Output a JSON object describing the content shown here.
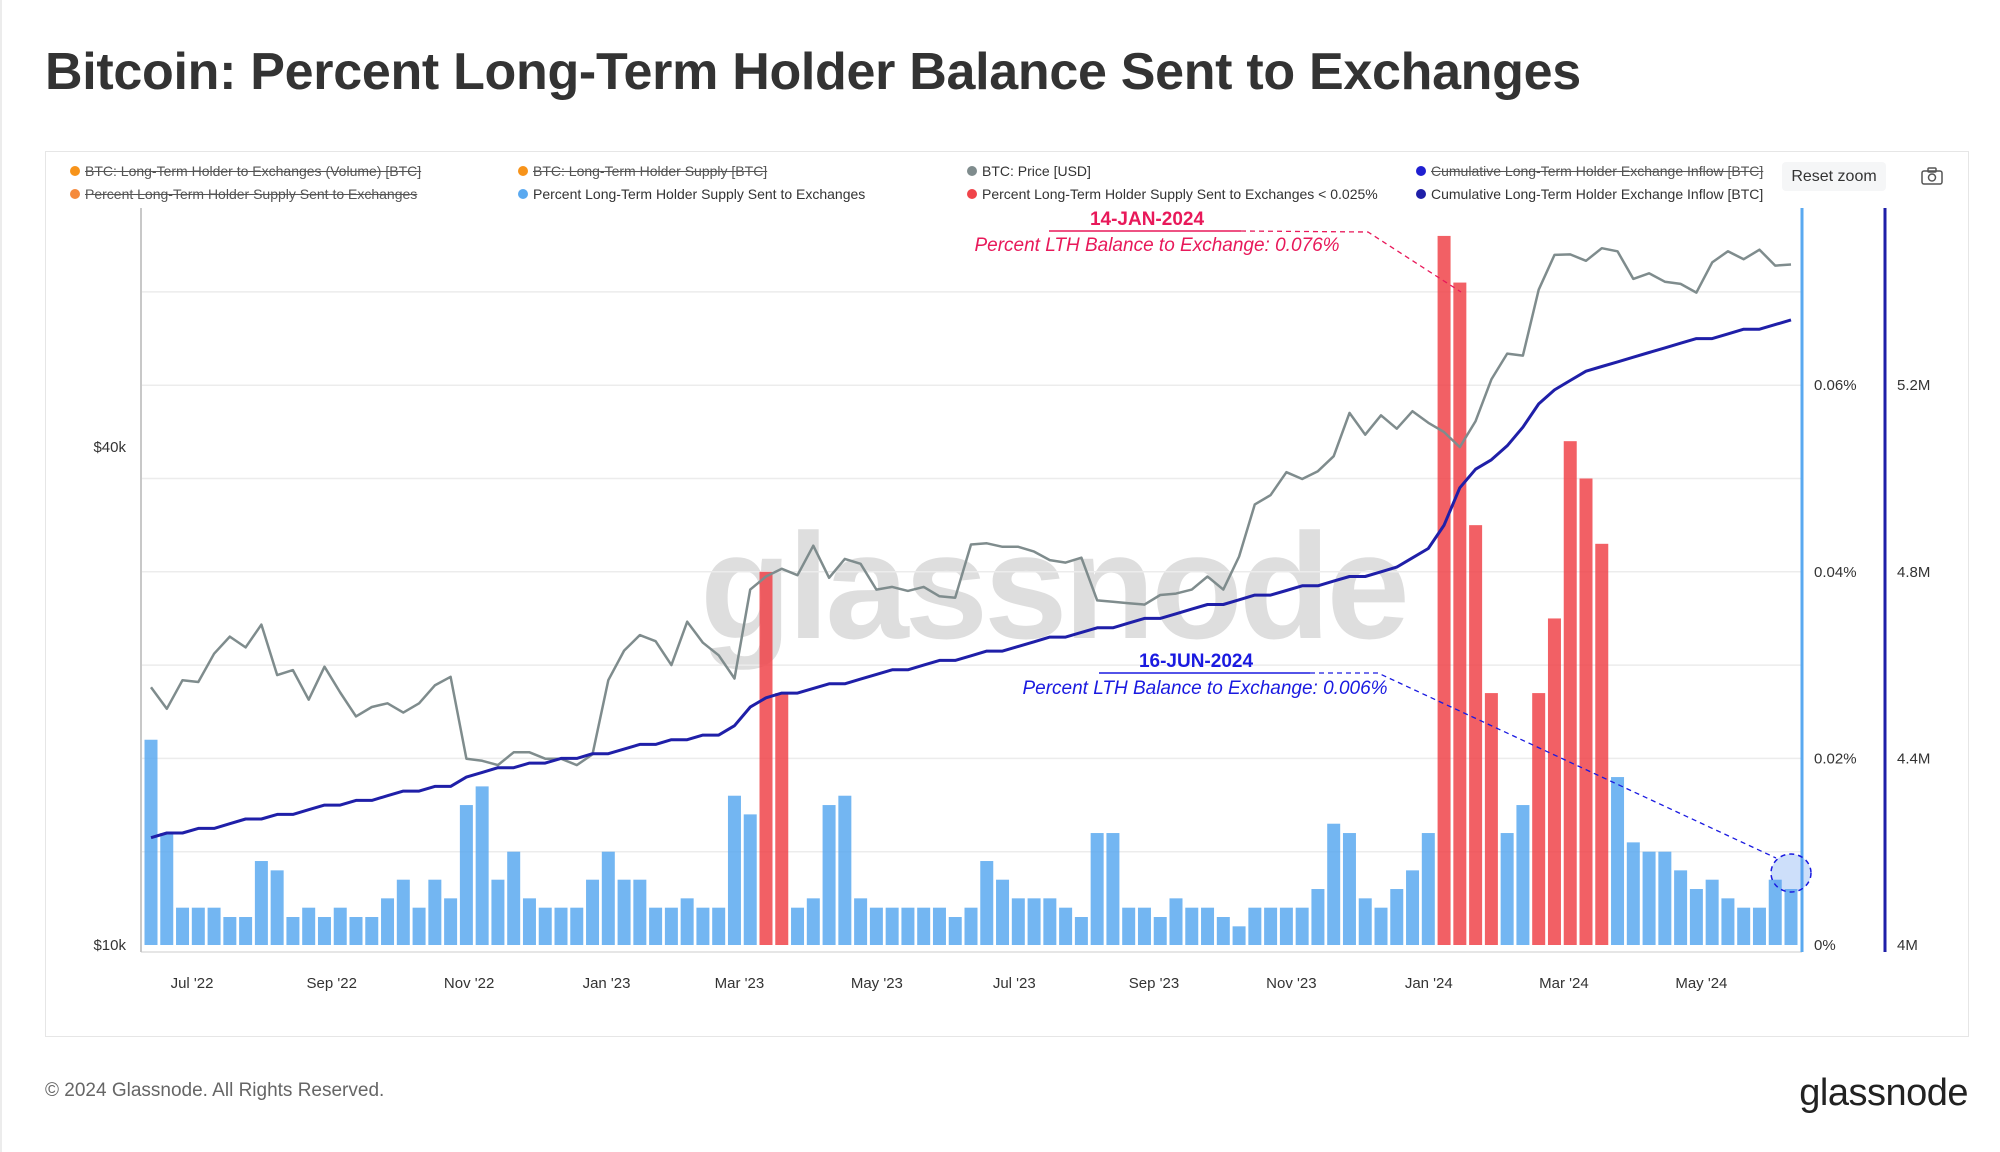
{
  "title": "Bitcoin: Percent Long-Term Holder Balance Sent to Exchanges",
  "legend": [
    {
      "label": "BTC: Long-Term Holder to Exchanges (Volume) [BTC]",
      "color": "#f7931a",
      "enabled": false
    },
    {
      "label": "BTC: Long-Term Holder Supply [BTC]",
      "color": "#f7931a",
      "enabled": false
    },
    {
      "label": "BTC: Price [USD]",
      "color": "#7f8c8d",
      "enabled": true
    },
    {
      "label": "Cumulative Long-Term Holder Exchange Inflow [BTC]",
      "color": "#1f1fd1",
      "enabled": false
    },
    {
      "label": "Percent Long-Term Holder Supply Sent to Exchanges",
      "color": "#f58a3c",
      "enabled": false
    },
    {
      "label": "Percent Long-Term Holder Supply Sent to Exchanges",
      "color": "#5aa9f0",
      "enabled": true
    },
    {
      "label": "Percent Long-Term Holder Supply Sent to Exchanges < 0.025%",
      "color": "#f0444a",
      "enabled": true
    },
    {
      "label": "Cumulative Long-Term Holder Exchange Inflow [BTC]",
      "color": "#1f1fa8",
      "enabled": true
    }
  ],
  "controls": {
    "reset_zoom": "Reset zoom",
    "camera_icon": "camera-icon"
  },
  "watermark": "glassnode",
  "annotations": [
    {
      "date": "14-JAN-2024",
      "text": "Percent LTH Balance to Exchange: 0.076%",
      "color": "#e8195a"
    },
    {
      "date": "16-JUN-2024",
      "text": "Percent LTH Balance to Exchange: 0.006%",
      "color": "#1a1ae0"
    }
  ],
  "footer": {
    "copyright": "© 2024 Glassnode. All Rights Reserved.",
    "logo": "glassnode"
  },
  "chart_data": {
    "type": "bar+line",
    "x_tick_labels": [
      "Jul '22",
      "Sep '22",
      "Nov '22",
      "Jan '23",
      "Mar '23",
      "May '23",
      "Jul '23",
      "Sep '23",
      "Nov '23",
      "Jan '24",
      "Mar '24",
      "May '24"
    ],
    "left_axis": {
      "scale": "log",
      "tick_labels": [
        "$10k",
        "$40k"
      ],
      "ticks": [
        10000,
        40000
      ]
    },
    "right_axis_percent": {
      "tick_labels": [
        "0%",
        "0.02%",
        "0.04%",
        "0.06%"
      ],
      "ticks": [
        0,
        0.02,
        0.04,
        0.06
      ],
      "color": "#5aa9f0"
    },
    "right_axis_cumulative": {
      "tick_labels": [
        "4M",
        "4.4M",
        "4.8M",
        "5.2M"
      ],
      "ticks": [
        4.0,
        4.4,
        4.8,
        5.2
      ],
      "color": "#1f1fa8"
    },
    "grid": true,
    "legend_position": "top",
    "threshold_percent": 0.025,
    "x": [
      "2022-06-19",
      "2022-06-26",
      "2022-07-03",
      "2022-07-10",
      "2022-07-17",
      "2022-07-24",
      "2022-07-31",
      "2022-08-07",
      "2022-08-14",
      "2022-08-21",
      "2022-08-28",
      "2022-09-04",
      "2022-09-11",
      "2022-09-18",
      "2022-09-25",
      "2022-10-02",
      "2022-10-09",
      "2022-10-16",
      "2022-10-23",
      "2022-10-30",
      "2022-11-06",
      "2022-11-13",
      "2022-11-20",
      "2022-11-27",
      "2022-12-04",
      "2022-12-11",
      "2022-12-18",
      "2022-12-25",
      "2023-01-01",
      "2023-01-08",
      "2023-01-15",
      "2023-01-22",
      "2023-01-29",
      "2023-02-05",
      "2023-02-12",
      "2023-02-19",
      "2023-02-26",
      "2023-03-05",
      "2023-03-12",
      "2023-03-19",
      "2023-03-26",
      "2023-04-02",
      "2023-04-09",
      "2023-04-16",
      "2023-04-23",
      "2023-04-30",
      "2023-05-07",
      "2023-05-14",
      "2023-05-21",
      "2023-05-28",
      "2023-06-04",
      "2023-06-11",
      "2023-06-18",
      "2023-06-25",
      "2023-07-02",
      "2023-07-09",
      "2023-07-16",
      "2023-07-23",
      "2023-07-30",
      "2023-08-06",
      "2023-08-13",
      "2023-08-20",
      "2023-08-27",
      "2023-09-03",
      "2023-09-10",
      "2023-09-17",
      "2023-09-24",
      "2023-10-01",
      "2023-10-08",
      "2023-10-15",
      "2023-10-22",
      "2023-10-29",
      "2023-11-05",
      "2023-11-12",
      "2023-11-19",
      "2023-11-26",
      "2023-12-03",
      "2023-12-10",
      "2023-12-17",
      "2023-12-24",
      "2023-12-31",
      "2024-01-07",
      "2024-01-14",
      "2024-01-21",
      "2024-01-28",
      "2024-02-04",
      "2024-02-11",
      "2024-02-18",
      "2024-02-25",
      "2024-03-03",
      "2024-03-10",
      "2024-03-17",
      "2024-03-24",
      "2024-03-31",
      "2024-04-07",
      "2024-04-14",
      "2024-04-21",
      "2024-04-28",
      "2024-05-05",
      "2024-05-12",
      "2024-05-19",
      "2024-05-26",
      "2024-06-02",
      "2024-06-09",
      "2024-06-16"
    ],
    "series": [
      {
        "name": "BTC: Price [USD]",
        "type": "line",
        "axis": "left",
        "color": "#7f8c8d",
        "values": [
          20500,
          19300,
          20900,
          20800,
          22500,
          23600,
          22900,
          24400,
          21200,
          21500,
          19800,
          21700,
          20200,
          18900,
          19400,
          19600,
          19100,
          19600,
          20600,
          21100,
          16800,
          16700,
          16500,
          17100,
          17100,
          16800,
          16800,
          16500,
          17000,
          20900,
          22700,
          23700,
          23300,
          21800,
          24600,
          23200,
          22400,
          21000,
          26900,
          27900,
          28500,
          28000,
          30400,
          27800,
          29300,
          28900,
          26900,
          27100,
          26800,
          27100,
          26400,
          26300,
          30500,
          30600,
          30300,
          30300,
          29900,
          29200,
          29000,
          29400,
          26100,
          26000,
          25900,
          25800,
          26500,
          26600,
          26900,
          27900,
          26900,
          29500,
          34100,
          35000,
          37300,
          36600,
          37400,
          39000,
          44000,
          41400,
          43700,
          42100,
          44200,
          42800,
          41700,
          40000,
          43000,
          48300,
          51900,
          51600,
          62000,
          68300,
          68400,
          67200,
          69600,
          69000,
          63900,
          64900,
          63400,
          63000,
          61500,
          66900,
          69000,
          67500,
          69300,
          66300,
          66500
        ]
      },
      {
        "name": "Cumulative Long-Term Holder Exchange Inflow [BTC]",
        "type": "line",
        "axis": "right_cumulative",
        "unit": "M",
        "color": "#1f1fa8",
        "values": [
          4.23,
          4.24,
          4.24,
          4.25,
          4.25,
          4.26,
          4.27,
          4.27,
          4.28,
          4.28,
          4.29,
          4.3,
          4.3,
          4.31,
          4.31,
          4.32,
          4.33,
          4.33,
          4.34,
          4.34,
          4.36,
          4.37,
          4.38,
          4.38,
          4.39,
          4.39,
          4.4,
          4.4,
          4.41,
          4.41,
          4.42,
          4.43,
          4.43,
          4.44,
          4.44,
          4.45,
          4.45,
          4.47,
          4.51,
          4.53,
          4.54,
          4.54,
          4.55,
          4.56,
          4.56,
          4.57,
          4.58,
          4.59,
          4.59,
          4.6,
          4.61,
          4.61,
          4.62,
          4.63,
          4.63,
          4.64,
          4.65,
          4.66,
          4.66,
          4.67,
          4.68,
          4.68,
          4.69,
          4.7,
          4.7,
          4.71,
          4.72,
          4.73,
          4.73,
          4.74,
          4.75,
          4.75,
          4.76,
          4.77,
          4.77,
          4.78,
          4.79,
          4.79,
          4.8,
          4.81,
          4.83,
          4.85,
          4.9,
          4.98,
          5.02,
          5.04,
          5.07,
          5.11,
          5.16,
          5.19,
          5.21,
          5.23,
          5.24,
          5.25,
          5.26,
          5.27,
          5.28,
          5.29,
          5.3,
          5.3,
          5.31,
          5.32,
          5.32,
          5.33,
          5.34
        ]
      },
      {
        "name": "Percent Long-Term Holder Supply Sent to Exchanges",
        "type": "bar",
        "axis": "right_percent",
        "unit": "%",
        "color": "#5aa9f0",
        "highlight_color": "#f0444a",
        "values": [
          0.022,
          0.012,
          0.004,
          0.004,
          0.004,
          0.003,
          0.003,
          0.009,
          0.008,
          0.003,
          0.004,
          0.003,
          0.004,
          0.003,
          0.003,
          0.005,
          0.007,
          0.004,
          0.007,
          0.005,
          0.015,
          0.017,
          0.007,
          0.01,
          0.005,
          0.004,
          0.004,
          0.004,
          0.007,
          0.01,
          0.007,
          0.007,
          0.004,
          0.004,
          0.005,
          0.004,
          0.004,
          0.016,
          0.014,
          0.04,
          0.027,
          0.004,
          0.005,
          0.015,
          0.016,
          0.005,
          0.004,
          0.004,
          0.004,
          0.004,
          0.004,
          0.003,
          0.004,
          0.009,
          0.007,
          0.005,
          0.005,
          0.005,
          0.004,
          0.003,
          0.012,
          0.012,
          0.004,
          0.004,
          0.003,
          0.005,
          0.004,
          0.004,
          0.003,
          0.002,
          0.004,
          0.004,
          0.004,
          0.004,
          0.006,
          0.013,
          0.012,
          0.005,
          0.004,
          0.006,
          0.008,
          0.012,
          0.076,
          0.071,
          0.045,
          0.027,
          0.012,
          0.015,
          0.027,
          0.035,
          0.054,
          0.05,
          0.043,
          0.018,
          0.011,
          0.01,
          0.01,
          0.008,
          0.006,
          0.007,
          0.005,
          0.004,
          0.004,
          0.007,
          0.006
        ]
      }
    ]
  }
}
